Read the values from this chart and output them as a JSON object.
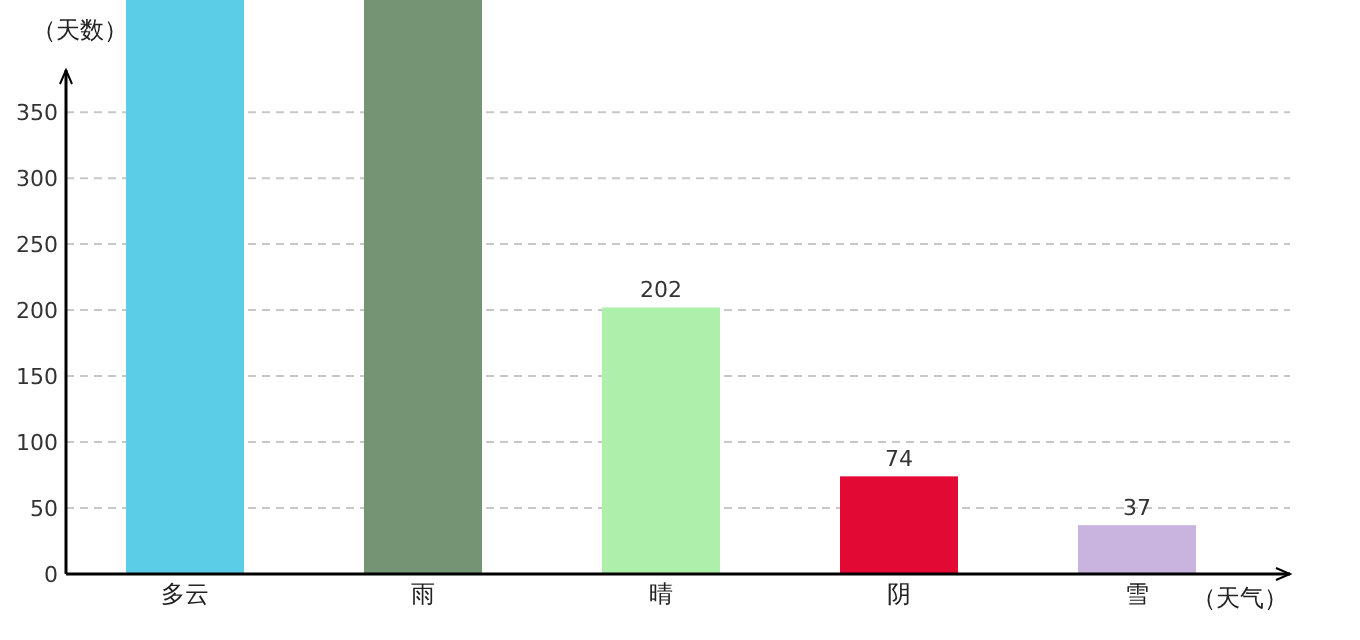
{
  "chart_data": {
    "type": "bar",
    "xlabel": "（天气）",
    "ylabel": "（天数）",
    "categories": [
      "多云",
      "雨",
      "晴",
      "阴",
      "雪"
    ],
    "values": [
      435,
      435,
      202,
      74,
      37
    ],
    "colors": [
      "#5bcde6",
      "#749474",
      "#aef0ab",
      "#e20a35",
      "#c8b4df"
    ],
    "value_labels": [
      null,
      null,
      "202",
      "74",
      "37"
    ],
    "ylim": [
      0,
      435
    ],
    "yticks": [
      0,
      50,
      100,
      150,
      200,
      250,
      300,
      350
    ],
    "grid": "y"
  }
}
